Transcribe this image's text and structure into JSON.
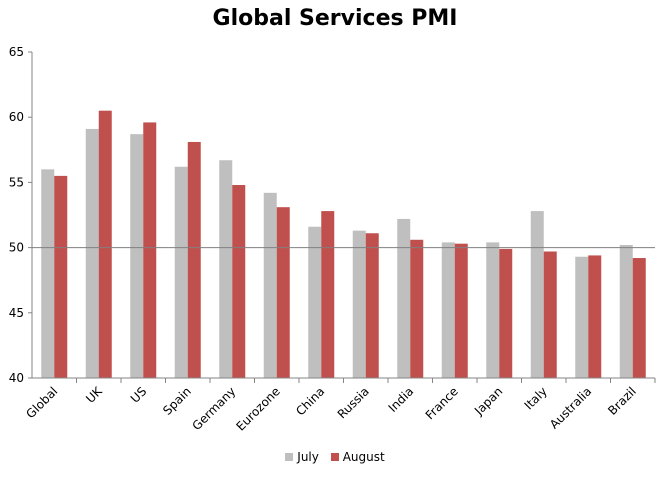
{
  "chart_data": {
    "type": "bar",
    "title": "Global Services PMI",
    "xlabel": "",
    "ylabel": "",
    "ylim": [
      40,
      65
    ],
    "yticks": [
      40,
      45,
      50,
      55,
      60,
      65
    ],
    "reference_line": 50,
    "grid": false,
    "legend_position": "bottom",
    "categories": [
      "Global",
      "UK",
      "US",
      "Spain",
      "Germany",
      "Eurozone",
      "China",
      "Russia",
      "India",
      "France",
      "Japan",
      "Italy",
      "Australia",
      "Brazil"
    ],
    "series": [
      {
        "name": "July",
        "color": "#bfbfbf",
        "values": [
          56.0,
          59.1,
          58.7,
          56.2,
          56.7,
          54.2,
          51.6,
          51.3,
          52.2,
          50.4,
          50.4,
          52.8,
          49.3,
          50.2
        ]
      },
      {
        "name": "August",
        "color": "#c0504d",
        "values": [
          55.5,
          60.5,
          59.6,
          58.1,
          54.8,
          53.1,
          52.8,
          51.1,
          50.6,
          50.3,
          49.9,
          49.7,
          49.4,
          49.2
        ]
      }
    ]
  }
}
